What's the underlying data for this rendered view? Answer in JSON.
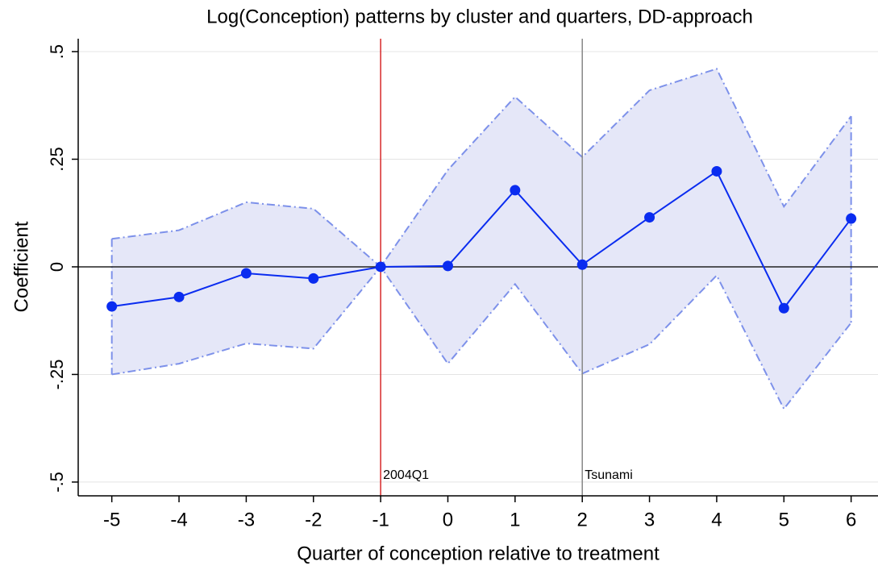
{
  "chart_data": {
    "type": "line",
    "title": "Log(Conception) patterns by cluster and quarters, DD-approach",
    "x_label": "Quarter of conception relative to treatment",
    "y_label": "Coefficient",
    "x": [
      -5,
      -4,
      -3,
      -2,
      -1,
      0,
      1,
      2,
      3,
      4,
      5,
      6
    ],
    "values": [
      -0.092,
      -0.07,
      -0.015,
      -0.027,
      0,
      0.002,
      0.178,
      0.005,
      0.115,
      0.222,
      -0.096,
      0.112
    ],
    "ci_upper": [
      0.065,
      0.085,
      0.15,
      0.135,
      0,
      0.225,
      0.395,
      0.255,
      0.41,
      0.46,
      0.14,
      0.35
    ],
    "ci_lower": [
      -0.25,
      -0.225,
      -0.178,
      -0.19,
      0,
      -0.225,
      -0.04,
      -0.248,
      -0.18,
      -0.02,
      -0.33,
      -0.13
    ],
    "color": "#0a2cf0",
    "band_color": "#e5e7f8",
    "band_edge_color": "#7d91ea",
    "xlim": [
      -5.5,
      6.4
    ],
    "xticks": [
      -5,
      -4,
      -3,
      -2,
      -1,
      0,
      1,
      2,
      3,
      4,
      5,
      6
    ],
    "ylim": [
      -0.532,
      0.53
    ],
    "yticks": [
      {
        "value": -0.5,
        "label": "-.5"
      },
      {
        "value": -0.25,
        "label": "-.25"
      },
      0,
      {
        "value": 0.25,
        "label": ".25"
      },
      {
        "value": 0.5,
        "label": ".5"
      }
    ],
    "grid": true,
    "reference_y": 0,
    "annotations": [
      {
        "x": -1,
        "label": "2004Q1",
        "color": "#d62728"
      },
      {
        "x": 2,
        "label": "Tsunami",
        "color": "#888888"
      }
    ]
  }
}
